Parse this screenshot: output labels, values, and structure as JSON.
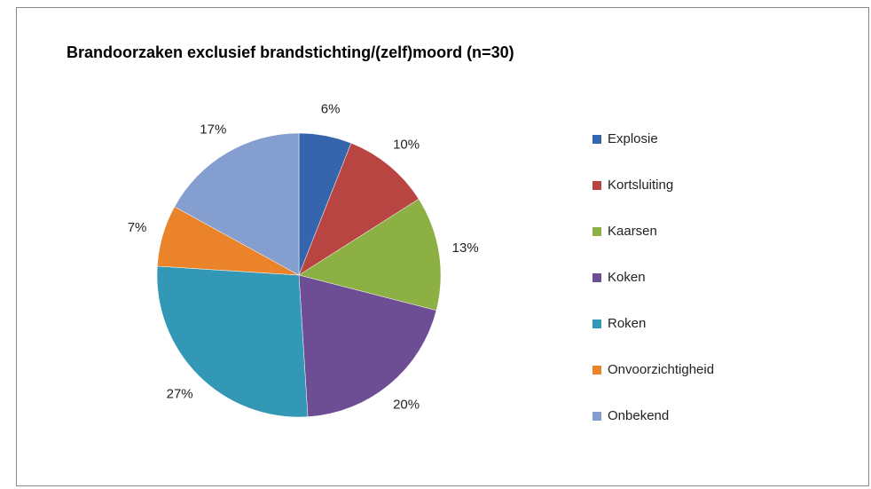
{
  "chart_data": {
    "type": "pie",
    "title": "Brandoorzaken exclusief brandstichting/(zelf)moord  (n=30)",
    "categories": [
      "Explosie",
      "Kortsluiting",
      "Kaarsen",
      "Koken",
      "Roken",
      "Onvoorzichtigheid",
      "Onbekend"
    ],
    "values": [
      6,
      10,
      13,
      20,
      27,
      7,
      17
    ],
    "value_labels": [
      "6%",
      "10%",
      "13%",
      "20%",
      "27%",
      "7%",
      "17%"
    ],
    "colors": [
      "#3566ad",
      "#b94542",
      "#8cb043",
      "#6d4d94",
      "#3398b5",
      "#ea8329",
      "#849fcf"
    ],
    "legend": "right"
  }
}
